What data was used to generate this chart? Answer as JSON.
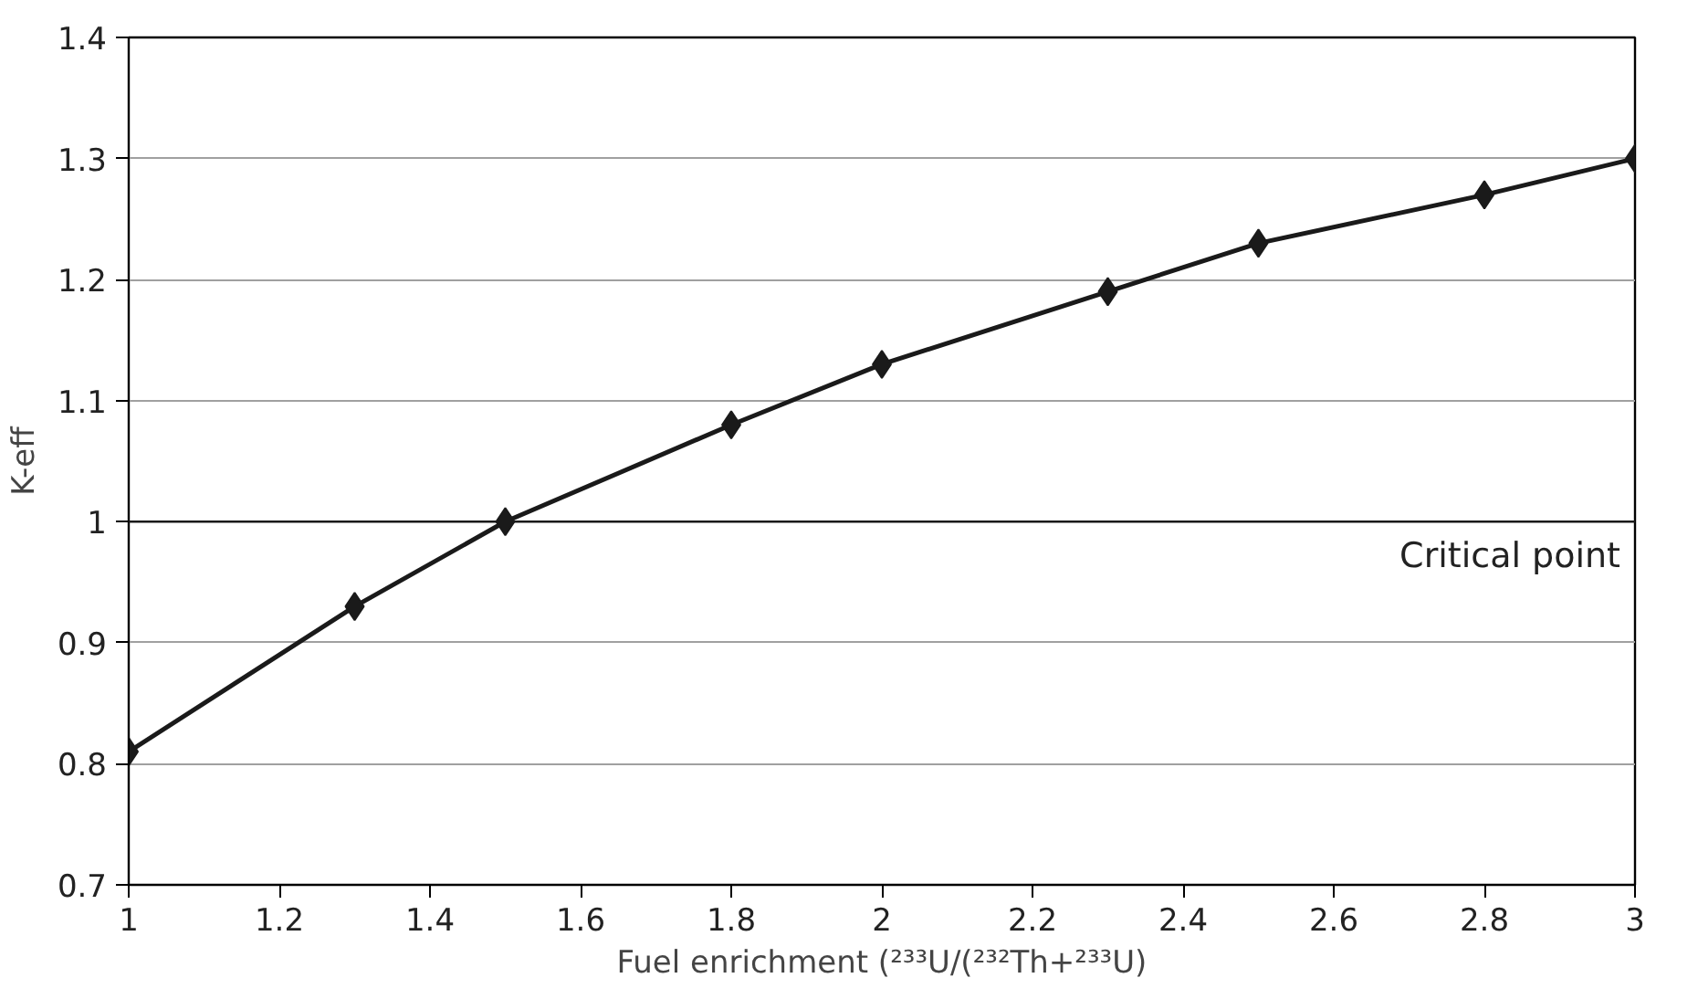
{
  "chart_data": {
    "type": "line",
    "xlabel": "Fuel enrichment (²³³U/(²³²Th+²³³U)",
    "ylabel": "K-eff",
    "x": [
      1,
      1.3,
      1.5,
      1.8,
      2,
      2.3,
      2.5,
      2.8,
      3
    ],
    "series": [
      {
        "color": "#1a1a1a",
        "values": [
          0.81,
          0.93,
          1.0,
          1.08,
          1.13,
          1.19,
          1.23,
          1.27,
          1.3
        ]
      }
    ],
    "xlim": [
      1,
      3
    ],
    "xticks": [
      1,
      1.2,
      1.4,
      1.6,
      1.8,
      2,
      2.2,
      2.4,
      2.6,
      2.8,
      3
    ],
    "ylim": [
      0.7,
      1.4
    ],
    "yticks": [
      0.7,
      0.8,
      0.9,
      1,
      1.1,
      1.2,
      1.3,
      1.4
    ],
    "ref_lines": [
      {
        "axis": "y",
        "value": 1,
        "label": "Critical point",
        "color": "#1a1a1a"
      }
    ],
    "grid": "y",
    "marker": "diamond",
    "line_style": "solid"
  }
}
